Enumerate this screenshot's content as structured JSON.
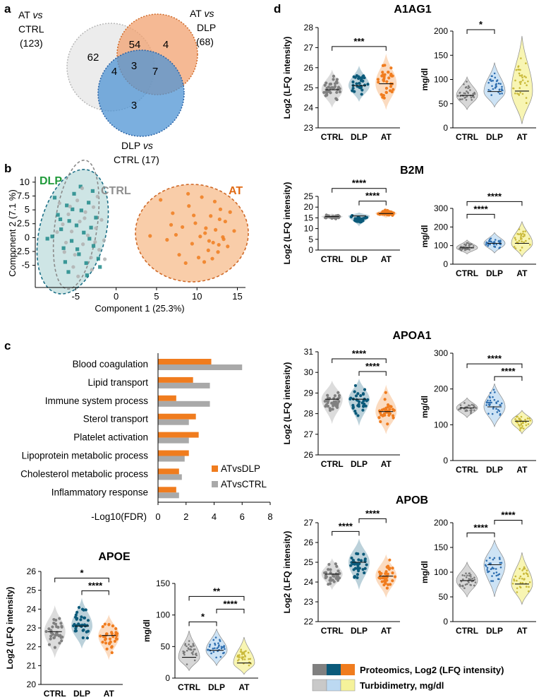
{
  "colors": {
    "ctrl_p": "#808080",
    "dlp_p": "#0b5a7a",
    "at_p": "#f07c1e",
    "ctrl_t": "#c9c9c9",
    "dlp_t": "#bcd9f2",
    "at_t": "#f5f29a",
    "venn_ctrl": "#dcdcdc",
    "venn_dlp": "#f2a270",
    "venn_at": "#4f94d4",
    "pca_dlp": "#1f8a8a",
    "pca_ctrl": "#9a9a9a",
    "pca_at": "#f07c1e",
    "bar_dlp": "#f07c1e",
    "bar_ctrl": "#a9a9a9"
  },
  "panel_letters": {
    "a": "a",
    "b": "b",
    "c": "c",
    "d": "d"
  },
  "venn": {
    "label_at_ctrl_1": "AT",
    "label_at_ctrl_vs": "vs",
    "label_at_ctrl_2": "CTRL",
    "label_at_ctrl_n": "(123)",
    "label_at_dlp_1": "AT",
    "label_at_dlp_vs": "vs",
    "label_at_dlp_2": "DLP",
    "label_at_dlp_n": "(68)",
    "label_dlp_ctrl_1": "DLP",
    "label_dlp_ctrl_vs": "vs",
    "label_dlp_ctrl_2": "CTRL (17)",
    "only_at_ctrl": "62",
    "only_at_dlp": "4",
    "only_dlp_ctrl": "3",
    "at_ctrl_and_at_dlp": "54",
    "at_ctrl_and_dlp_ctrl": "4",
    "at_dlp_and_dlp_ctrl": "7",
    "all_three": "3"
  },
  "chart_data": [
    {
      "type": "scatter",
      "panel": "b",
      "xlabel": "Component 1 (25.3%)",
      "ylabel": "Component 2 (7.1 %)",
      "xlim": [
        -10,
        16
      ],
      "ylim": [
        -9,
        11
      ],
      "xticks": [
        "-5",
        "0",
        "5",
        "10",
        "15"
      ],
      "yticks": [
        "10",
        "7.5",
        "5",
        "2.5",
        "0",
        "-2.5",
        "-5"
      ],
      "series": [
        {
          "name": "DLP",
          "marker": "square",
          "points": [
            [
              -7.6,
              7.2
            ],
            [
              -7.2,
              4.1
            ],
            [
              -6.8,
              1.5
            ],
            [
              -6.5,
              -1.9
            ],
            [
              -6.1,
              5.8
            ],
            [
              -5.8,
              3.0
            ],
            [
              -5.5,
              -0.6
            ],
            [
              -5.2,
              7.9
            ],
            [
              -4.9,
              2.2
            ],
            [
              -4.6,
              -3.0
            ],
            [
              -4.3,
              4.9
            ],
            [
              -4.0,
              0.9
            ],
            [
              -3.7,
              -4.6
            ],
            [
              -3.4,
              6.3
            ],
            [
              -3.1,
              1.8
            ],
            [
              -2.8,
              -1.5
            ],
            [
              -2.5,
              3.6
            ],
            [
              -2.2,
              -3.8
            ],
            [
              -5.9,
              -6.2
            ],
            [
              -4.4,
              9.2
            ],
            [
              -7.9,
              0.2
            ],
            [
              -6.3,
              -4.4
            ],
            [
              -3.6,
              -6.8
            ],
            [
              -2.9,
              8.4
            ],
            [
              -4.8,
              -2.1
            ],
            [
              -6.9,
              3.3
            ],
            [
              -5.4,
              5.1
            ],
            [
              -3.3,
              -0.2
            ],
            [
              -2.0,
              -5.3
            ],
            [
              -8.5,
              -0.2
            ]
          ]
        },
        {
          "name": "CTRL",
          "marker": "circle",
          "points": [
            [
              -7.0,
              6.2
            ],
            [
              -6.6,
              2.4
            ],
            [
              -6.2,
              -0.9
            ],
            [
              -5.9,
              4.2
            ],
            [
              -5.5,
              1.1
            ],
            [
              -5.1,
              -3.1
            ],
            [
              -4.8,
              6.7
            ],
            [
              -4.5,
              2.9
            ],
            [
              -4.1,
              -1.2
            ],
            [
              -3.8,
              4.6
            ],
            [
              -3.5,
              0.4
            ],
            [
              -3.1,
              -3.6
            ],
            [
              -2.8,
              5.5
            ],
            [
              -2.5,
              1.7
            ],
            [
              -2.1,
              -2.2
            ],
            [
              -1.8,
              3.2
            ],
            [
              -1.5,
              -0.5
            ],
            [
              -4.2,
              8.9
            ],
            [
              -3.0,
              -5.8
            ],
            [
              -6.4,
              -2.6
            ],
            [
              -5.3,
              -5.3
            ],
            [
              -2.3,
              7.4
            ],
            [
              -1.4,
              -3.9
            ],
            [
              -7.3,
              1.0
            ],
            [
              -4.7,
              -7.0
            ],
            [
              -3.9,
              3.5
            ],
            [
              -5.7,
              5.6
            ],
            [
              -2.6,
              -0.8
            ]
          ]
        },
        {
          "name": "AT",
          "marker": "circle",
          "points": [
            [
              4.2,
              0.3
            ],
            [
              5.5,
              6.8
            ],
            [
              6.3,
              -0.4
            ],
            [
              7.0,
              4.4
            ],
            [
              7.4,
              0.5
            ],
            [
              7.8,
              -3.1
            ],
            [
              8.2,
              1.9
            ],
            [
              8.6,
              -4.6
            ],
            [
              9.0,
              5.7
            ],
            [
              9.4,
              -1.1
            ],
            [
              9.8,
              2.6
            ],
            [
              10.2,
              -3.6
            ],
            [
              10.6,
              7.3
            ],
            [
              11.0,
              0.8
            ],
            [
              11.4,
              -2.3
            ],
            [
              11.7,
              3.9
            ],
            [
              12.0,
              -0.9
            ],
            [
              12.3,
              1.4
            ],
            [
              12.6,
              -2.6
            ],
            [
              12.9,
              5.1
            ],
            [
              13.2,
              0.1
            ],
            [
              13.5,
              2.9
            ],
            [
              13.8,
              -1.6
            ],
            [
              14.1,
              4.6
            ],
            [
              10.9,
              -4.4
            ],
            [
              11.9,
              -3.8
            ],
            [
              12.7,
              -1.3
            ],
            [
              13.3,
              -0.3
            ],
            [
              11.1,
              1.7
            ],
            [
              8.9,
              7.9
            ],
            [
              9.6,
              4.0
            ],
            [
              6.8,
              2.3
            ],
            [
              12.2,
              6.5
            ],
            [
              14.6,
              1.2
            ],
            [
              10.4,
              0.2
            ],
            [
              11.5,
              -0.6
            ],
            [
              12.8,
              3.3
            ]
          ]
        }
      ],
      "labels": {
        "dlp": "DLP",
        "ctrl": "CTRL",
        "at": "AT"
      }
    },
    {
      "type": "bar",
      "panel": "c",
      "orientation": "horizontal",
      "categories": [
        "Blood coagulation",
        "Lipid transport",
        "Immune system process",
        "Sterol transport",
        "Platelet activation",
        "Lipoprotein metabolic process",
        "Cholesterol metabolic process",
        "Inflammatory response"
      ],
      "series": [
        {
          "name": "ATvsDLP",
          "values": [
            3.8,
            2.5,
            1.3,
            2.7,
            2.9,
            2.2,
            1.5,
            1.3
          ]
        },
        {
          "name": "ATvsCTRL",
          "values": [
            6.0,
            3.7,
            3.7,
            2.2,
            2.2,
            1.9,
            1.7,
            1.5
          ]
        }
      ],
      "xlabel": "-Log10(FDR)",
      "xlim": [
        0,
        8
      ],
      "xticks": [
        "0",
        "2",
        "4",
        "6",
        "8"
      ]
    },
    {
      "type": "violin",
      "panel": "APOE",
      "title": "APOE",
      "proteomics": {
        "ylabel": "Log2 (LFQ intensity)",
        "ylim": [
          20,
          26
        ],
        "yticks": [
          "20",
          "21",
          "22",
          "23",
          "24",
          "25",
          "26"
        ],
        "categories": [
          "CTRL",
          "DLP",
          "AT"
        ],
        "medians": [
          22.8,
          23.1,
          22.6
        ],
        "ranges": [
          [
            21.4,
            24.2
          ],
          [
            21.9,
            24.6
          ],
          [
            21.3,
            23.7
          ]
        ],
        "significance": [
          {
            "pair": [
              "CTRL",
              "AT"
            ],
            "label": "*"
          },
          {
            "pair": [
              "DLP",
              "AT"
            ],
            "label": "****"
          }
        ]
      },
      "turbidimetry": {
        "ylabel": "mg/dl",
        "ylim": [
          0,
          150
        ],
        "yticks": [
          "0",
          "50",
          "100",
          "150"
        ],
        "categories": [
          "CTRL",
          "DLP",
          "AT"
        ],
        "medians": [
          33,
          44,
          24
        ],
        "ranges": [
          [
            12,
            75
          ],
          [
            20,
            78
          ],
          [
            6,
            65
          ]
        ],
        "significance": [
          {
            "pair": [
              "CTRL",
              "DLP"
            ],
            "label": "*"
          },
          {
            "pair": [
              "DLP",
              "AT"
            ],
            "label": "****"
          },
          {
            "pair": [
              "CTRL",
              "AT"
            ],
            "label": "**"
          }
        ]
      }
    },
    {
      "type": "violin",
      "panel": "A1AG1",
      "title": "A1AG1",
      "proteomics": {
        "ylabel": "Log2 (LFQ intensity)",
        "ylim": [
          23,
          28
        ],
        "yticks": [
          "23",
          "24",
          "25",
          "26",
          "27",
          "28"
        ],
        "categories": [
          "CTRL",
          "DLP",
          "AT"
        ],
        "medians": [
          24.9,
          25.1,
          25.2
        ],
        "ranges": [
          [
            24.0,
            25.9
          ],
          [
            24.3,
            26.1
          ],
          [
            23.9,
            26.7
          ]
        ],
        "significance": [
          {
            "pair": [
              "CTRL",
              "AT"
            ],
            "label": "***"
          }
        ]
      },
      "turbidimetry": {
        "ylabel": "mg/dl",
        "ylim": [
          0,
          200
        ],
        "yticks": [
          "0",
          "50",
          "100",
          "150",
          "200"
        ],
        "categories": [
          "CTRL",
          "DLP",
          "AT"
        ],
        "medians": [
          67,
          75,
          76
        ],
        "ranges": [
          [
            38,
            105
          ],
          [
            43,
            135
          ],
          [
            8,
            190
          ]
        ],
        "significance": [
          {
            "pair": [
              "CTRL",
              "DLP"
            ],
            "label": "*"
          }
        ]
      }
    },
    {
      "type": "violin",
      "panel": "B2M",
      "title": "B2M",
      "proteomics": {
        "ylabel": "Log2 (LFQ intensity)",
        "ylim": [
          0,
          25
        ],
        "yticks": [
          "0",
          "5",
          "10",
          "15",
          "20",
          "25"
        ],
        "categories": [
          "CTRL",
          "DLP",
          "AT"
        ],
        "medians": [
          15.6,
          15.9,
          17.0
        ],
        "ranges": [
          [
            14.0,
            17.0
          ],
          [
            11.0,
            17.5
          ],
          [
            15.0,
            19.5
          ]
        ],
        "significance": [
          {
            "pair": [
              "DLP",
              "AT"
            ],
            "label": "****"
          },
          {
            "pair": [
              "CTRL",
              "AT"
            ],
            "label": "****"
          }
        ]
      },
      "turbidimetry": {
        "ylabel": "mg/dl",
        "ylim": [
          0,
          300
        ],
        "yticks": [
          "0",
          "100",
          "200",
          "300"
        ],
        "categories": [
          "CTRL",
          "DLP",
          "AT"
        ],
        "medians": [
          88,
          112,
          112
        ],
        "ranges": [
          [
            55,
            130
          ],
          [
            60,
            170
          ],
          [
            40,
            230
          ]
        ],
        "significance": [
          {
            "pair": [
              "CTRL",
              "DLP"
            ],
            "label": "****"
          },
          {
            "pair": [
              "CTRL",
              "AT"
            ],
            "label": "****"
          }
        ]
      }
    },
    {
      "type": "violin",
      "panel": "APOA1",
      "title": "APOA1",
      "proteomics": {
        "ylabel": "Log2 (LFQ intensity)",
        "ylim": [
          26,
          31
        ],
        "yticks": [
          "26",
          "27",
          "28",
          "29",
          "30",
          "31"
        ],
        "categories": [
          "CTRL",
          "DLP",
          "AT"
        ],
        "medians": [
          28.7,
          28.7,
          28.1
        ],
        "ranges": [
          [
            27.5,
            29.6
          ],
          [
            27.4,
            29.7
          ],
          [
            27.0,
            29.4
          ]
        ],
        "significance": [
          {
            "pair": [
              "DLP",
              "AT"
            ],
            "label": "****"
          },
          {
            "pair": [
              "CTRL",
              "AT"
            ],
            "label": "****"
          }
        ]
      },
      "turbidimetry": {
        "ylabel": "mg/dl",
        "ylim": [
          0,
          300
        ],
        "yticks": [
          "0",
          "100",
          "200",
          "300"
        ],
        "categories": [
          "CTRL",
          "DLP",
          "AT"
        ],
        "medians": [
          147,
          150,
          110
        ],
        "ranges": [
          [
            120,
            175
          ],
          [
            95,
            215
          ],
          [
            75,
            140
          ]
        ],
        "significance": [
          {
            "pair": [
              "DLP",
              "AT"
            ],
            "label": "****"
          },
          {
            "pair": [
              "CTRL",
              "AT"
            ],
            "label": "****"
          }
        ]
      }
    },
    {
      "type": "violin",
      "panel": "APOB",
      "title": "APOB",
      "proteomics": {
        "ylabel": "Log2 (LFQ intensity)",
        "ylim": [
          22,
          27
        ],
        "yticks": [
          "22",
          "23",
          "24",
          "25",
          "26",
          "27"
        ],
        "categories": [
          "CTRL",
          "DLP",
          "AT"
        ],
        "medians": [
          24.4,
          25.0,
          24.3
        ],
        "ranges": [
          [
            23.6,
            25.2
          ],
          [
            23.6,
            26.2
          ],
          [
            23.2,
            25.4
          ]
        ],
        "significance": [
          {
            "pair": [
              "CTRL",
              "DLP"
            ],
            "label": "****"
          },
          {
            "pair": [
              "DLP",
              "AT"
            ],
            "label": "****"
          }
        ]
      },
      "turbidimetry": {
        "ylabel": "mg/dl",
        "ylim": [
          0,
          200
        ],
        "yticks": [
          "0",
          "50",
          "100",
          "150",
          "200"
        ],
        "categories": [
          "CTRL",
          "DLP",
          "AT"
        ],
        "medians": [
          83,
          115,
          76
        ],
        "ranges": [
          [
            50,
            120
          ],
          [
            50,
            165
          ],
          [
            35,
            140
          ]
        ],
        "significance": [
          {
            "pair": [
              "CTRL",
              "DLP"
            ],
            "label": "****"
          },
          {
            "pair": [
              "DLP",
              "AT"
            ],
            "label": "****"
          }
        ]
      }
    }
  ],
  "legend": {
    "proteomics_label": "Proteomics, Log2 (LFQ intensity)",
    "turbidimetry_label": "Turbidimetry, mg/dl"
  }
}
